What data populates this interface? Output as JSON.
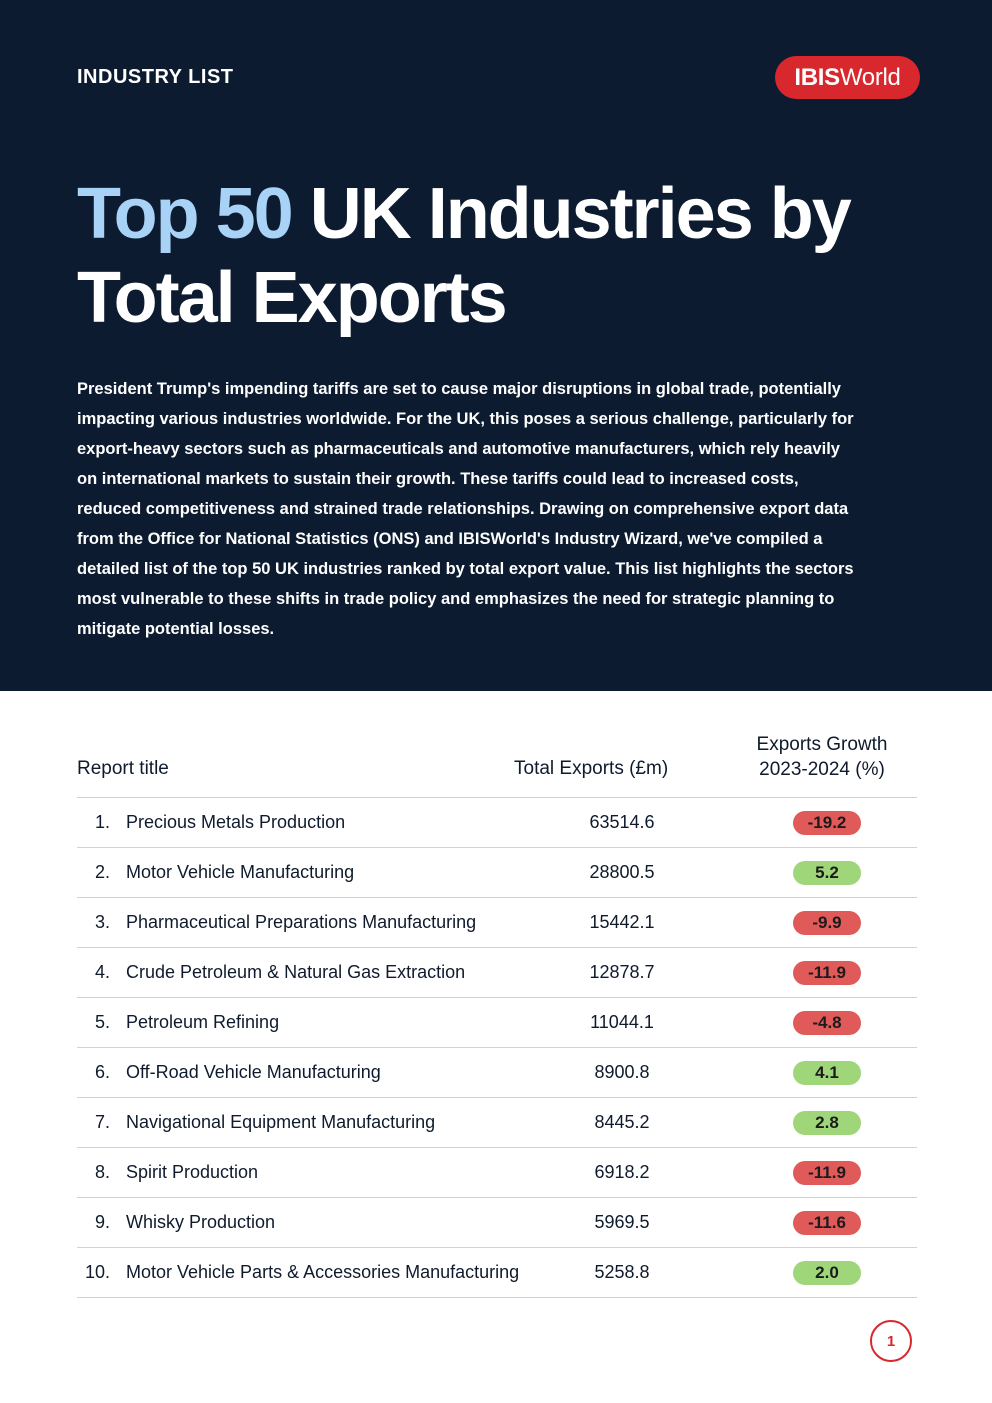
{
  "header": {
    "kicker": "INDUSTRY LIST",
    "logo_bold": "IBIS",
    "logo_light": "World",
    "title_accent": "Top 50",
    "title_rest": " UK Industries by Total Exports",
    "intro": "President Trump's impending tariffs are set to cause major disruptions in global trade, potentially impacting various industries worldwide. For the UK, this poses a serious challenge, particularly for export-heavy sectors such as pharmaceuticals and automotive manufacturers, which rely heavily on international markets to sustain their growth. These tariffs could lead to increased costs, reduced competitiveness and strained trade relationships. Drawing on comprehensive export data from the Office for National Statistics (ONS) and IBISWorld's Industry Wizard, we've compiled a detailed list of the top 50 UK industries ranked by total export value. This list highlights the sectors most vulnerable to these shifts in trade policy and emphasizes the need for strategic planning to mitigate potential losses."
  },
  "table": {
    "col_title": "Report title",
    "col_exports": "Total Exports (£m)",
    "col_growth_line1": "Exports Growth",
    "col_growth_line2": "2023-2024 (%)",
    "rows": [
      {
        "rank": "1.",
        "name": "Precious Metals Production",
        "exports": "63514.6",
        "growth": "-19.2",
        "trend": "neg"
      },
      {
        "rank": "2.",
        "name": "Motor Vehicle Manufacturing",
        "exports": "28800.5",
        "growth": "5.2",
        "trend": "pos"
      },
      {
        "rank": "3.",
        "name": "Pharmaceutical Preparations Manufacturing",
        "exports": "15442.1",
        "growth": "-9.9",
        "trend": "neg"
      },
      {
        "rank": "4.",
        "name": "Crude Petroleum & Natural Gas Extraction",
        "exports": "12878.7",
        "growth": "-11.9",
        "trend": "neg"
      },
      {
        "rank": "5.",
        "name": "Petroleum Refining",
        "exports": "11044.1",
        "growth": "-4.8",
        "trend": "neg"
      },
      {
        "rank": "6.",
        "name": "Off-Road Vehicle Manufacturing",
        "exports": "8900.8",
        "growth": "4.1",
        "trend": "pos"
      },
      {
        "rank": "7.",
        "name": "Navigational Equipment Manufacturing",
        "exports": "8445.2",
        "growth": "2.8",
        "trend": "pos"
      },
      {
        "rank": "8.",
        "name": "Spirit Production",
        "exports": "6918.2",
        "growth": "-11.9",
        "trend": "neg"
      },
      {
        "rank": "9.",
        "name": "Whisky Production",
        "exports": "5969.5",
        "growth": "-11.6",
        "trend": "neg"
      },
      {
        "rank": "10.",
        "name": "Motor Vehicle Parts & Accessories Manufacturing",
        "exports": "5258.8",
        "growth": "2.0",
        "trend": "pos"
      }
    ]
  },
  "footer": {
    "page_number": "1"
  },
  "colors": {
    "hero_bg": "#0c1b30",
    "accent_blue": "#a9d2f7",
    "brand_red": "#d8282e",
    "negative": "#e05a5a",
    "positive": "#9fd67a"
  }
}
